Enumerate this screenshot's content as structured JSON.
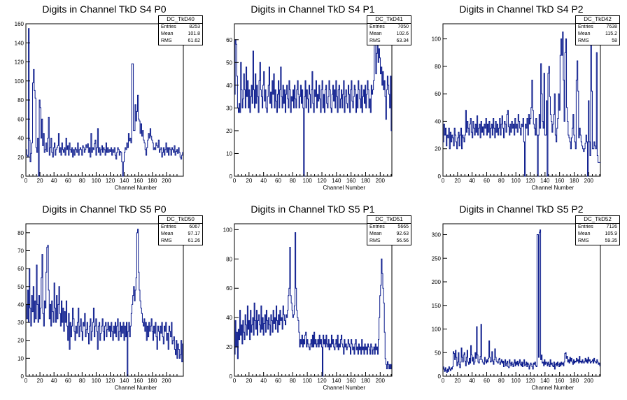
{
  "chart_data": [
    {
      "type": "histogram",
      "title": "Digits in Channel TkD S4 P0",
      "xlabel": "Channel Number",
      "xlim": [
        0,
        224
      ],
      "ylim": [
        0,
        160
      ],
      "xticks": [
        0,
        20,
        40,
        60,
        80,
        100,
        120,
        140,
        160,
        180,
        200
      ],
      "yticks": [
        0,
        20,
        40,
        60,
        80,
        100,
        120,
        140,
        160
      ],
      "stats": {
        "name": "DC_TkD40",
        "entries": "8253",
        "mean": "101.8",
        "rms": "61.62"
      },
      "values": [
        28,
        22,
        20,
        155,
        38,
        15,
        24,
        35,
        98,
        112,
        90,
        82,
        30,
        25,
        40,
        0,
        80,
        72,
        40,
        60,
        32,
        45,
        25,
        28,
        35,
        26,
        40,
        62,
        22,
        30,
        40,
        25,
        20,
        30,
        35,
        22,
        28,
        30,
        32,
        45,
        25,
        30,
        22,
        35,
        28,
        25,
        30,
        22,
        40,
        28,
        32,
        22,
        35,
        28,
        25,
        30,
        20,
        28,
        22,
        30,
        28,
        25,
        35,
        22,
        28,
        30,
        28,
        22,
        32,
        30,
        25,
        28,
        33,
        30,
        34,
        25,
        30,
        20,
        45,
        25,
        30,
        28,
        34,
        38,
        22,
        30,
        50,
        25,
        30,
        22,
        28,
        32,
        25,
        30,
        28,
        22,
        35,
        25,
        30,
        25,
        28,
        26,
        30,
        22,
        28,
        25,
        30,
        22,
        18,
        25,
        30,
        28,
        22,
        26,
        25,
        15,
        0,
        15,
        25,
        30,
        28,
        35,
        30,
        45,
        37,
        40,
        35,
        118,
        118,
        48,
        48,
        75,
        58,
        68,
        85,
        60,
        58,
        45,
        55,
        42,
        48,
        38,
        35,
        28,
        22,
        30,
        38,
        45,
        40,
        50,
        42,
        38,
        35,
        28,
        30,
        28,
        35,
        32,
        30,
        38,
        25,
        28,
        30,
        20,
        25,
        30,
        22,
        28,
        35,
        25,
        30,
        22,
        30,
        28,
        22,
        30,
        28,
        25,
        32,
        22,
        26,
        28,
        24,
        30,
        25,
        20,
        18,
        22,
        25
      ]
    },
    {
      "type": "histogram",
      "title": "Digits in Channel TkD S4 P1",
      "xlabel": "Channel Number",
      "xlim": [
        0,
        216
      ],
      "ylim": [
        0,
        67
      ],
      "xticks": [
        0,
        20,
        40,
        60,
        80,
        100,
        120,
        140,
        160,
        180,
        200
      ],
      "yticks": [
        0,
        10,
        20,
        30,
        40,
        50,
        60
      ],
      "stats": {
        "name": "DC_TkD41",
        "entries": "7050",
        "mean": "102.6",
        "rms": "63.34"
      },
      "values": [
        36,
        60,
        58,
        44,
        30,
        28,
        32,
        28,
        50,
        38,
        30,
        34,
        45,
        38,
        30,
        48,
        35,
        42,
        30,
        38,
        28,
        35,
        40,
        32,
        55,
        38,
        30,
        45,
        32,
        40,
        35,
        28,
        42,
        50,
        38,
        35,
        30,
        40,
        46,
        33,
        38,
        30,
        28,
        35,
        40,
        48,
        32,
        37,
        30,
        42,
        36,
        45,
        30,
        38,
        33,
        28,
        36,
        42,
        30,
        38,
        48,
        35,
        30,
        40,
        32,
        38,
        28,
        36,
        40,
        34,
        30,
        42,
        38,
        28,
        35,
        33,
        38,
        30,
        40,
        34,
        30,
        38,
        42,
        36,
        30,
        35,
        40,
        32,
        38,
        30,
        0,
        35,
        42,
        30,
        38,
        34,
        28,
        40,
        36,
        30,
        38,
        46,
        32,
        28,
        38,
        35,
        42,
        30,
        36,
        33,
        40,
        34,
        28,
        38,
        42,
        30,
        36,
        28,
        38,
        40,
        32,
        30,
        35,
        42,
        38,
        30,
        28,
        36,
        40,
        33,
        38,
        30,
        42,
        35,
        28,
        38,
        40,
        30,
        34,
        38,
        30,
        36,
        42,
        28,
        35,
        38,
        32,
        30,
        40,
        36,
        28,
        38,
        42,
        33,
        30,
        35,
        40,
        38,
        28,
        36,
        30,
        42,
        38,
        34,
        30,
        40,
        28,
        35,
        38,
        32,
        40,
        30,
        36,
        42,
        38,
        30,
        34,
        28,
        40,
        36,
        38,
        42,
        58,
        64,
        45,
        54,
        58,
        50,
        56,
        52,
        45,
        48,
        40,
        46,
        38,
        42,
        35,
        25,
        38,
        44,
        40,
        36,
        30,
        44,
        20
      ]
    },
    {
      "type": "histogram",
      "title": "Digits in Channel TkD S4 P2",
      "xlabel": "Channel Number",
      "xlim": [
        0,
        216
      ],
      "ylim": [
        0,
        111
      ],
      "xticks": [
        0,
        20,
        40,
        60,
        80,
        100,
        120,
        140,
        160,
        180,
        200
      ],
      "yticks": [
        0,
        20,
        40,
        60,
        80,
        100
      ],
      "stats": {
        "name": "DC_TkD42",
        "entries": "7638",
        "mean": "115.2",
        "rms": "58"
      },
      "values": [
        25,
        38,
        30,
        35,
        22,
        30,
        28,
        35,
        20,
        32,
        25,
        30,
        28,
        22,
        35,
        30,
        25,
        20,
        28,
        32,
        22,
        30,
        35,
        20,
        30,
        28,
        25,
        30,
        48,
        32,
        40,
        35,
        30,
        38,
        42,
        32,
        28,
        40,
        35,
        30,
        38,
        32,
        44,
        30,
        35,
        38,
        28,
        40,
        32,
        36,
        30,
        38,
        35,
        42,
        30,
        38,
        32,
        40,
        28,
        35,
        38,
        30,
        42,
        35,
        28,
        40,
        32,
        38,
        30,
        35,
        42,
        30,
        38,
        44,
        35,
        28,
        40,
        38,
        32,
        45,
        48,
        36,
        30,
        38,
        32,
        40,
        35,
        38,
        30,
        42,
        35,
        38,
        32,
        45,
        40,
        35,
        30,
        38,
        36,
        42,
        25,
        0,
        38,
        35,
        42,
        30,
        45,
        38,
        42,
        50,
        70,
        48,
        38,
        35,
        30,
        42,
        30,
        0,
        30,
        45,
        35,
        82,
        60,
        40,
        35,
        75,
        30,
        30,
        55,
        0,
        75,
        80,
        58,
        45,
        40,
        32,
        38,
        45,
        60,
        30,
        25,
        35,
        42,
        60,
        48,
        88,
        100,
        88,
        105,
        70,
        40,
        90,
        100,
        50,
        40,
        30,
        28,
        25,
        20,
        28,
        35,
        45,
        30,
        25,
        20,
        70,
        84,
        62,
        28,
        35,
        30,
        25,
        22,
        20,
        18,
        20,
        24,
        30,
        25,
        0,
        55,
        25,
        15,
        95,
        62,
        20,
        20,
        25,
        22,
        20,
        90,
        15,
        10,
        10,
        10
      ]
    },
    {
      "type": "histogram",
      "title": "Digits in Channel TkD S5 P0",
      "xlabel": "Channel Number",
      "xlim": [
        0,
        224
      ],
      "ylim": [
        0,
        85
      ],
      "xticks": [
        0,
        20,
        40,
        60,
        80,
        100,
        120,
        140,
        160,
        180,
        200
      ],
      "yticks": [
        0,
        10,
        20,
        30,
        40,
        50,
        60,
        70,
        80
      ],
      "stats": {
        "name": "DC_TkD50",
        "entries": "6067",
        "mean": "97.17",
        "rms": "61.26"
      },
      "values": [
        40,
        32,
        48,
        30,
        60,
        38,
        28,
        45,
        36,
        50,
        30,
        42,
        32,
        62,
        40,
        30,
        45,
        32,
        38,
        55,
        68,
        35,
        28,
        42,
        38,
        58,
        72,
        73,
        48,
        32,
        40,
        28,
        42,
        36,
        30,
        52,
        38,
        30,
        45,
        32,
        40,
        50,
        35,
        28,
        42,
        30,
        38,
        25,
        36,
        30,
        42,
        28,
        20,
        35,
        15,
        30,
        22,
        28,
        38,
        32,
        25,
        20,
        28,
        24,
        30,
        38,
        22,
        28,
        32,
        25,
        20,
        30,
        28,
        35,
        22,
        26,
        30,
        24,
        18,
        28,
        32,
        20,
        25,
        30,
        38,
        22,
        28,
        32,
        25,
        15,
        28,
        30,
        20,
        24,
        28,
        32,
        25,
        20,
        28,
        30,
        22,
        26,
        30,
        25,
        28,
        22,
        30,
        25,
        20,
        28,
        24,
        30,
        22,
        28,
        32,
        20,
        25,
        30,
        22,
        28,
        24,
        30,
        20,
        28,
        22,
        30,
        0,
        25,
        30,
        22,
        28,
        35,
        40,
        45,
        50,
        42,
        48,
        55,
        80,
        82,
        58,
        48,
        42,
        38,
        35,
        30,
        28,
        32,
        25,
        30,
        20,
        28,
        22,
        30,
        25,
        28,
        32,
        25,
        20,
        28,
        24,
        30,
        22,
        15,
        28,
        25,
        20,
        28,
        24,
        30,
        22,
        18,
        28,
        25,
        30,
        20,
        24,
        15,
        28,
        25,
        22,
        30,
        18,
        20,
        22,
        15,
        12,
        20,
        10,
        18,
        15,
        10,
        12,
        20,
        8,
        18
      ]
    },
    {
      "type": "histogram",
      "title": "Digits in Channel TkD S5 P1",
      "xlabel": "Channel Number",
      "xlim": [
        0,
        216
      ],
      "ylim": [
        0,
        104
      ],
      "xticks": [
        0,
        20,
        40,
        60,
        80,
        100,
        120,
        140,
        160,
        180,
        200
      ],
      "yticks": [
        0,
        20,
        40,
        60,
        80,
        100
      ],
      "stats": {
        "name": "DC_TkD51",
        "entries": "5665",
        "mean": "92.63",
        "rms": "56.56"
      },
      "values": [
        15,
        38,
        20,
        30,
        12,
        32,
        25,
        45,
        28,
        35,
        22,
        38,
        30,
        25,
        42,
        35,
        28,
        48,
        32,
        38,
        25,
        45,
        30,
        35,
        40,
        28,
        50,
        38,
        32,
        45,
        28,
        38,
        42,
        35,
        30,
        48,
        32,
        40,
        28,
        36,
        42,
        30,
        45,
        38,
        32,
        40,
        35,
        28,
        42,
        38,
        30,
        45,
        36,
        40,
        32,
        48,
        38,
        30,
        42,
        35,
        45,
        38,
        40,
        32,
        48,
        42,
        38,
        35,
        42,
        40,
        45,
        55,
        60,
        88,
        55,
        50,
        45,
        40,
        42,
        48,
        98,
        60,
        45,
        40,
        38,
        30,
        20,
        25,
        22,
        28,
        20,
        25,
        22,
        28,
        30,
        20,
        25,
        22,
        20,
        18,
        22,
        25,
        20,
        28,
        20,
        30,
        22,
        25,
        20,
        22,
        25,
        20,
        28,
        22,
        25,
        20,
        0,
        28,
        22,
        25,
        20,
        28,
        22,
        20,
        25,
        18,
        22,
        20,
        28,
        22,
        25,
        20,
        18,
        22,
        25,
        20,
        28,
        18,
        22,
        20,
        25,
        28,
        22,
        20,
        15,
        25,
        20,
        22,
        18,
        20,
        25,
        22,
        20,
        15,
        25,
        22,
        18,
        20,
        15,
        22,
        25,
        18,
        20,
        15,
        22,
        18,
        20,
        15,
        25,
        18,
        20,
        15,
        22,
        18,
        20,
        15,
        22,
        20,
        18,
        15,
        22,
        20,
        15,
        18,
        20,
        15,
        22,
        18,
        20,
        15,
        25,
        40,
        55,
        62,
        80,
        70,
        60,
        50,
        30,
        12,
        8,
        5,
        10,
        8,
        5,
        8,
        5,
        8
      ]
    },
    {
      "type": "histogram",
      "title": "Digits in Channel TkD S5 P2",
      "xlabel": "Channel Number",
      "xlim": [
        0,
        216
      ],
      "ylim": [
        0,
        323
      ],
      "xticks": [
        0,
        20,
        40,
        60,
        80,
        100,
        120,
        140,
        160,
        180,
        200
      ],
      "yticks": [
        0,
        50,
        100,
        150,
        200,
        250,
        300
      ],
      "stats": {
        "name": "DC_TkD52",
        "entries": "7126",
        "mean": "105.9",
        "rms": "59.35"
      },
      "values": [
        20,
        15,
        10,
        18,
        12,
        8,
        15,
        10,
        20,
        15,
        12,
        18,
        15,
        20,
        52,
        48,
        35,
        55,
        40,
        22,
        30,
        50,
        25,
        18,
        30,
        60,
        40,
        30,
        45,
        50,
        32,
        22,
        40,
        55,
        30,
        25,
        38,
        28,
        65,
        45,
        32,
        40,
        25,
        30,
        50,
        38,
        105,
        45,
        30,
        28,
        35,
        42,
        110,
        35,
        30,
        28,
        25,
        40,
        32,
        28,
        35,
        30,
        38,
        75,
        40,
        30,
        32,
        52,
        32,
        25,
        35,
        58,
        40,
        32,
        30,
        28,
        35,
        38,
        25,
        30,
        35,
        28,
        32,
        20,
        30,
        35,
        22,
        28,
        32,
        20,
        18,
        35,
        28,
        22,
        30,
        25,
        20,
        28,
        35,
        22,
        30,
        25,
        32,
        22,
        28,
        35,
        25,
        22,
        30,
        20,
        28,
        35,
        22,
        25,
        30,
        20,
        28,
        25,
        15,
        22,
        28,
        25,
        20,
        15,
        28,
        25,
        30,
        22,
        20,
        300,
        300,
        40,
        305,
        310,
        35,
        45,
        28,
        30,
        22,
        35,
        25,
        30,
        28,
        22,
        30,
        25,
        20,
        35,
        25,
        28,
        22,
        20,
        30,
        15,
        25,
        28,
        22,
        30,
        25,
        20,
        28,
        22,
        30,
        25,
        28,
        22,
        30,
        48,
        50,
        38,
        42,
        30,
        35,
        28,
        40,
        32,
        38,
        30,
        25,
        35,
        28,
        32,
        30,
        38,
        32,
        35,
        28,
        42,
        30,
        32,
        28,
        35,
        30,
        28,
        32,
        38,
        30,
        35,
        28,
        40,
        32,
        35,
        28,
        30,
        32,
        35,
        28,
        38,
        32,
        30,
        28,
        35,
        30,
        25,
        28,
        22
      ]
    }
  ]
}
